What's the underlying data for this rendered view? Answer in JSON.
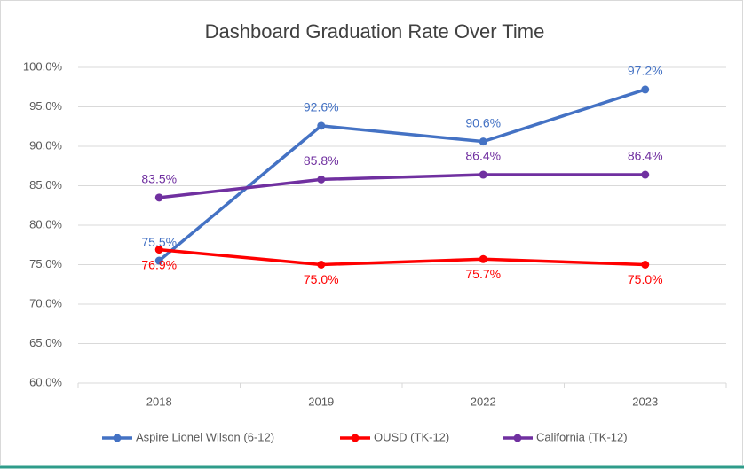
{
  "chart_data": {
    "type": "line",
    "title": "Dashboard Graduation Rate Over Time",
    "categories": [
      "2018",
      "2019",
      "2022",
      "2023"
    ],
    "series": [
      {
        "name": "Aspire Lionel Wilson (6-12)",
        "color": "#4472c4",
        "values": [
          75.5,
          92.6,
          90.6,
          97.2
        ],
        "value_labels": [
          "75.5%",
          "92.6%",
          "90.6%",
          "97.2%"
        ]
      },
      {
        "name": "OUSD (TK-12)",
        "color": "#ff0000",
        "values": [
          76.9,
          75.0,
          75.7,
          75.0
        ],
        "value_labels": [
          "76.9%",
          "75.0%",
          "75.7%",
          "75.0%"
        ]
      },
      {
        "name": "California (TK-12)",
        "color": "#7030a0",
        "values": [
          83.5,
          85.8,
          86.4,
          86.4
        ],
        "value_labels": [
          "83.5%",
          "85.8%",
          "86.4%",
          "86.4%"
        ]
      }
    ],
    "ylim": [
      60,
      100
    ],
    "yticks": [
      {
        "value": 60,
        "label": "60.0%"
      },
      {
        "value": 65,
        "label": "65.0%"
      },
      {
        "value": 70,
        "label": "70.0%"
      },
      {
        "value": 75,
        "label": "75.0%"
      },
      {
        "value": 80,
        "label": "80.0%"
      },
      {
        "value": 85,
        "label": "85.0%"
      },
      {
        "value": 90,
        "label": "90.0%"
      },
      {
        "value": 95,
        "label": "95.0%"
      },
      {
        "value": 100,
        "label": "100.0%"
      }
    ],
    "grid": true,
    "legend": "bottom"
  }
}
